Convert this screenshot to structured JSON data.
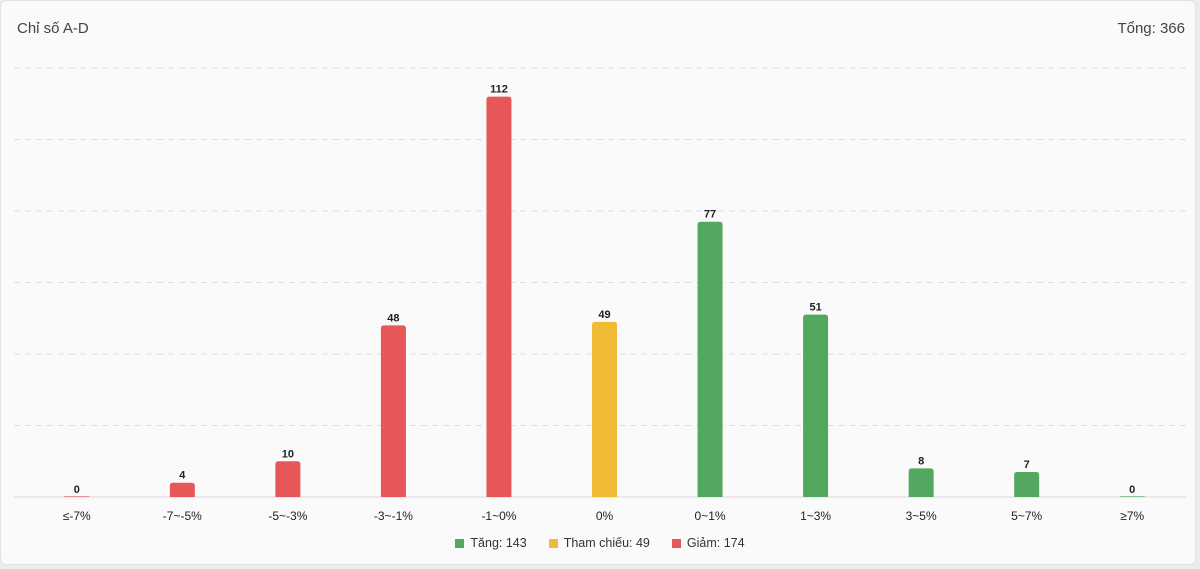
{
  "header": {
    "title": "Chỉ số A-D",
    "total_label": "Tổng: 366"
  },
  "colors": {
    "down": "#e85757",
    "ref": "#f2bb35",
    "up": "#52a85e",
    "grid": "#dddddd",
    "baseline": "#e3d2e0"
  },
  "legend": [
    {
      "key": "up",
      "label": "Tăng: 143"
    },
    {
      "key": "ref",
      "label": "Tham chiếu: 49"
    },
    {
      "key": "down",
      "label": "Giảm: 174"
    }
  ],
  "chart_data": {
    "type": "bar",
    "categories": [
      "≤-7%",
      "-7~-5%",
      "-5~-3%",
      "-3~-1%",
      "-1~0%",
      "0%",
      "0~1%",
      "1~3%",
      "3~5%",
      "5~7%",
      "≥7%"
    ],
    "values": [
      0,
      4,
      10,
      48,
      112,
      49,
      77,
      51,
      8,
      7,
      0
    ],
    "bar_groups": [
      "down",
      "down",
      "down",
      "down",
      "down",
      "ref",
      "up",
      "up",
      "up",
      "up",
      "up"
    ],
    "ylim": [
      0,
      120
    ],
    "grid": true,
    "data_labels": true,
    "legend_position": "bottom"
  }
}
